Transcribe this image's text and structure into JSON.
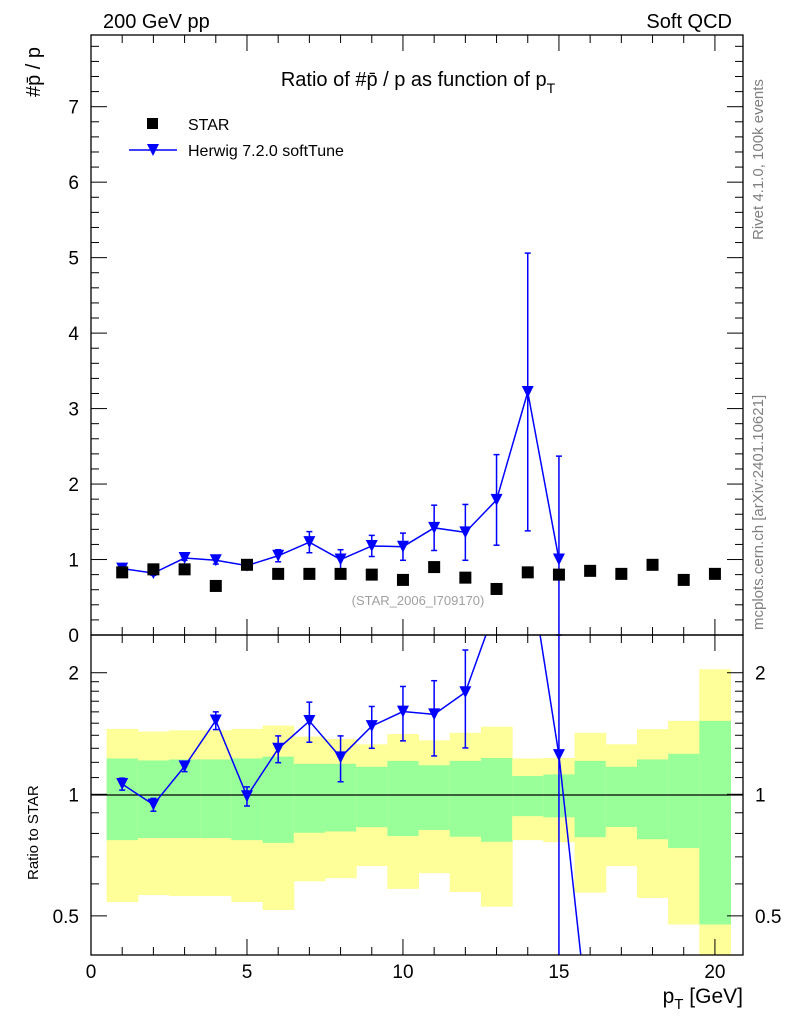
{
  "header": {
    "left": "200 GeV pp",
    "right": "Soft QCD"
  },
  "side_labels": {
    "rivet": "Rivet 4.1.0,  100k events",
    "mcplots": "mcplots.cern.ch [arXiv:2401.10621]"
  },
  "chart_data": [
    {
      "type": "scatter",
      "title": "Ratio of #p̄ / p as function of p",
      "title_sub": "T",
      "ylabel": "#p̄ / p",
      "xlabel": "p",
      "xlabel_sub": "T",
      "xlabel_unit": " [GeV]",
      "xlim": [
        0,
        20.9
      ],
      "ylim": [
        0,
        7.95
      ],
      "yticks": [
        "0",
        "1",
        "2",
        "3",
        "4",
        "5",
        "6",
        "7"
      ],
      "xticks": [
        "0",
        "5",
        "10",
        "15",
        "20"
      ],
      "watermark": "(STAR_2006_I709170)",
      "legend_position": "top-left",
      "series": [
        {
          "name": "STAR",
          "color": "#000000",
          "marker": "square",
          "x": [
            1,
            2,
            3,
            4,
            5,
            6,
            7,
            8,
            9,
            10,
            11,
            12,
            13,
            14,
            15,
            16,
            17,
            18,
            19,
            20
          ],
          "y": [
            0.83,
            0.87,
            0.87,
            0.65,
            0.93,
            0.81,
            0.81,
            0.81,
            0.8,
            0.73,
            0.9,
            0.76,
            0.61,
            0.83,
            0.8,
            0.85,
            0.81,
            0.93,
            0.73,
            0.81
          ]
        },
        {
          "name": "Herwig 7.2.0 softTune",
          "color": "#0000ff",
          "marker": "triangle-down",
          "x": [
            1,
            2,
            3,
            4,
            5,
            6,
            7,
            8,
            9,
            10,
            11,
            12,
            13,
            14,
            15,
            16
          ],
          "y": [
            0.88,
            0.82,
            1.02,
            0.99,
            0.92,
            1.05,
            1.23,
            1.0,
            1.18,
            1.17,
            1.42,
            1.36,
            1.79,
            3.22,
            1.0,
            0.0
          ],
          "yerr": [
            0.03,
            0.03,
            0.03,
            0.05,
            0.05,
            0.08,
            0.14,
            0.13,
            0.14,
            0.18,
            0.3,
            0.37,
            0.6,
            1.84,
            1.37,
            0
          ]
        }
      ]
    },
    {
      "type": "scatter",
      "ylabel": "Ratio to STAR",
      "yscale": "log",
      "ylim": [
        0.4,
        2.48
      ],
      "yticks": [
        "0.5",
        "1",
        "2"
      ],
      "ytick_values": [
        0.5,
        1,
        2
      ],
      "reference_line": 1,
      "bands": {
        "bin_edges": [
          0.5,
          1.5,
          2.5,
          3.5,
          4.5,
          5.5,
          6.5,
          7.5,
          8.5,
          9.5,
          10.5,
          11.5,
          12.5,
          13.5,
          14.5,
          15.5,
          16.5,
          17.5,
          18.5,
          19.5,
          20.5
        ],
        "inner_color": "#99ff99",
        "outer_color": "#ffff99",
        "inner_hi": [
          1.227,
          1.213,
          1.22,
          1.22,
          1.227,
          1.24,
          1.19,
          1.19,
          1.17,
          1.21,
          1.18,
          1.21,
          1.23,
          1.11,
          1.12,
          1.21,
          1.17,
          1.22,
          1.26,
          1.52
        ],
        "inner_lo": [
          0.77,
          0.779,
          0.779,
          0.779,
          0.77,
          0.758,
          0.803,
          0.809,
          0.829,
          0.788,
          0.816,
          0.785,
          0.763,
          0.883,
          0.877,
          0.783,
          0.83,
          0.774,
          0.736,
          0.476
        ],
        "outer_hi": [
          1.452,
          1.43,
          1.44,
          1.44,
          1.452,
          1.48,
          1.39,
          1.37,
          1.33,
          1.41,
          1.36,
          1.42,
          1.47,
          1.227,
          1.23,
          1.42,
          1.33,
          1.45,
          1.52,
          2.04
        ],
        "outer_lo": [
          0.541,
          0.563,
          0.56,
          0.56,
          0.541,
          0.517,
          0.609,
          0.62,
          0.664,
          0.583,
          0.638,
          0.573,
          0.527,
          0.77,
          0.761,
          0.571,
          0.664,
          0.554,
          0.476,
          0.38
        ]
      }
    }
  ]
}
